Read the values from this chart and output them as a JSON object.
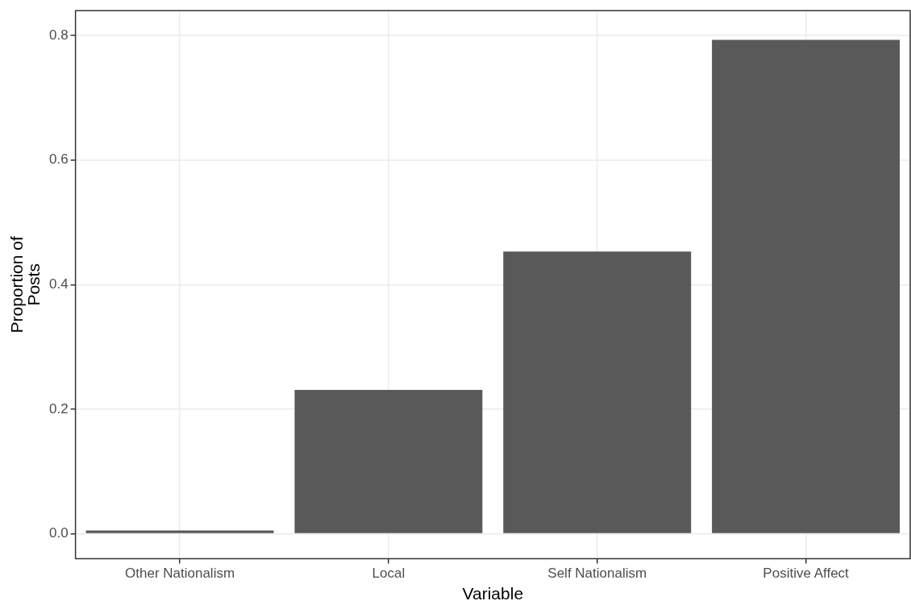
{
  "chart_data": {
    "type": "bar",
    "xlabel": "Variable",
    "ylabel": "Proportion of Posts",
    "categories": [
      "Other Nationalism",
      "Local",
      "Self Nationalism",
      "Positive Affect"
    ],
    "values": [
      0.005,
      0.231,
      0.453,
      0.793
    ],
    "color": "#595959",
    "ylim": [
      -0.04,
      0.84
    ],
    "yticks": [
      {
        "value": 0,
        "label": "0.0"
      },
      {
        "value": 0.2,
        "label": "0.2"
      },
      {
        "value": 0.4,
        "label": "0.4"
      },
      {
        "value": 0.6,
        "label": "0.6"
      },
      {
        "value": 0.8,
        "label": "0.8"
      }
    ],
    "grid": true
  }
}
